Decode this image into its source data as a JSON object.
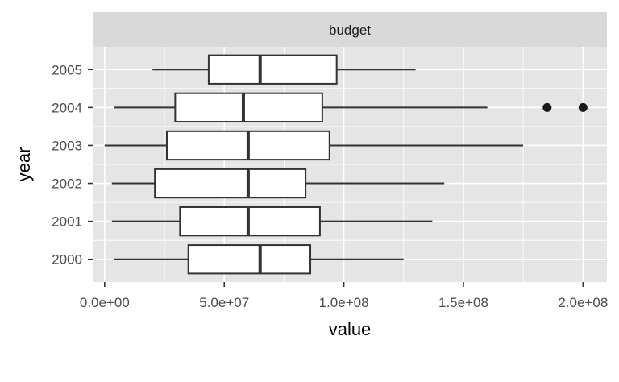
{
  "chart_data": {
    "type": "boxplot",
    "orientation": "horizontal",
    "facet_label": "budget",
    "xlabel": "value",
    "ylabel": "year",
    "xlim": [
      -5000000,
      210000000
    ],
    "x_ticks": [
      0,
      50000000,
      100000000,
      150000000,
      200000000
    ],
    "x_tick_labels": [
      "0.0e+00",
      "5.0e+07",
      "1.0e+08",
      "1.5e+08",
      "2.0e+08"
    ],
    "x_minor_ticks": [
      25000000,
      75000000,
      125000000,
      175000000
    ],
    "categories": [
      "2000",
      "2001",
      "2002",
      "2003",
      "2004",
      "2005"
    ],
    "series": [
      {
        "category": "2000",
        "whisker_low": 4000000,
        "q1": 35000000,
        "median": 65000000,
        "q3": 86000000,
        "whisker_high": 125000000,
        "outliers": []
      },
      {
        "category": "2001",
        "whisker_low": 3000000,
        "q1": 31500000,
        "median": 60000000,
        "q3": 90000000,
        "whisker_high": 137000000,
        "outliers": []
      },
      {
        "category": "2002",
        "whisker_low": 3000000,
        "q1": 21000000,
        "median": 60000000,
        "q3": 84000000,
        "whisker_high": 142000000,
        "outliers": []
      },
      {
        "category": "2003",
        "whisker_low": 0,
        "q1": 26000000,
        "median": 60000000,
        "q3": 94000000,
        "whisker_high": 175000000,
        "outliers": []
      },
      {
        "category": "2004",
        "whisker_low": 4000000,
        "q1": 29500000,
        "median": 58000000,
        "q3": 91000000,
        "whisker_high": 160000000,
        "outliers": [
          185000000,
          200000000
        ]
      },
      {
        "category": "2005",
        "whisker_low": 20000000,
        "q1": 43500000,
        "median": 65000000,
        "q3": 97000000,
        "whisker_high": 130000000,
        "outliers": []
      }
    ],
    "grid": true,
    "legend": "none",
    "colors": {
      "panel_background": "#e5e5e5",
      "strip_background": "#d9d9d9",
      "grid_line": "#ffffff",
      "box_fill": "#ffffff",
      "box_stroke": "#333333",
      "outlier": "#1a1a1a"
    }
  }
}
